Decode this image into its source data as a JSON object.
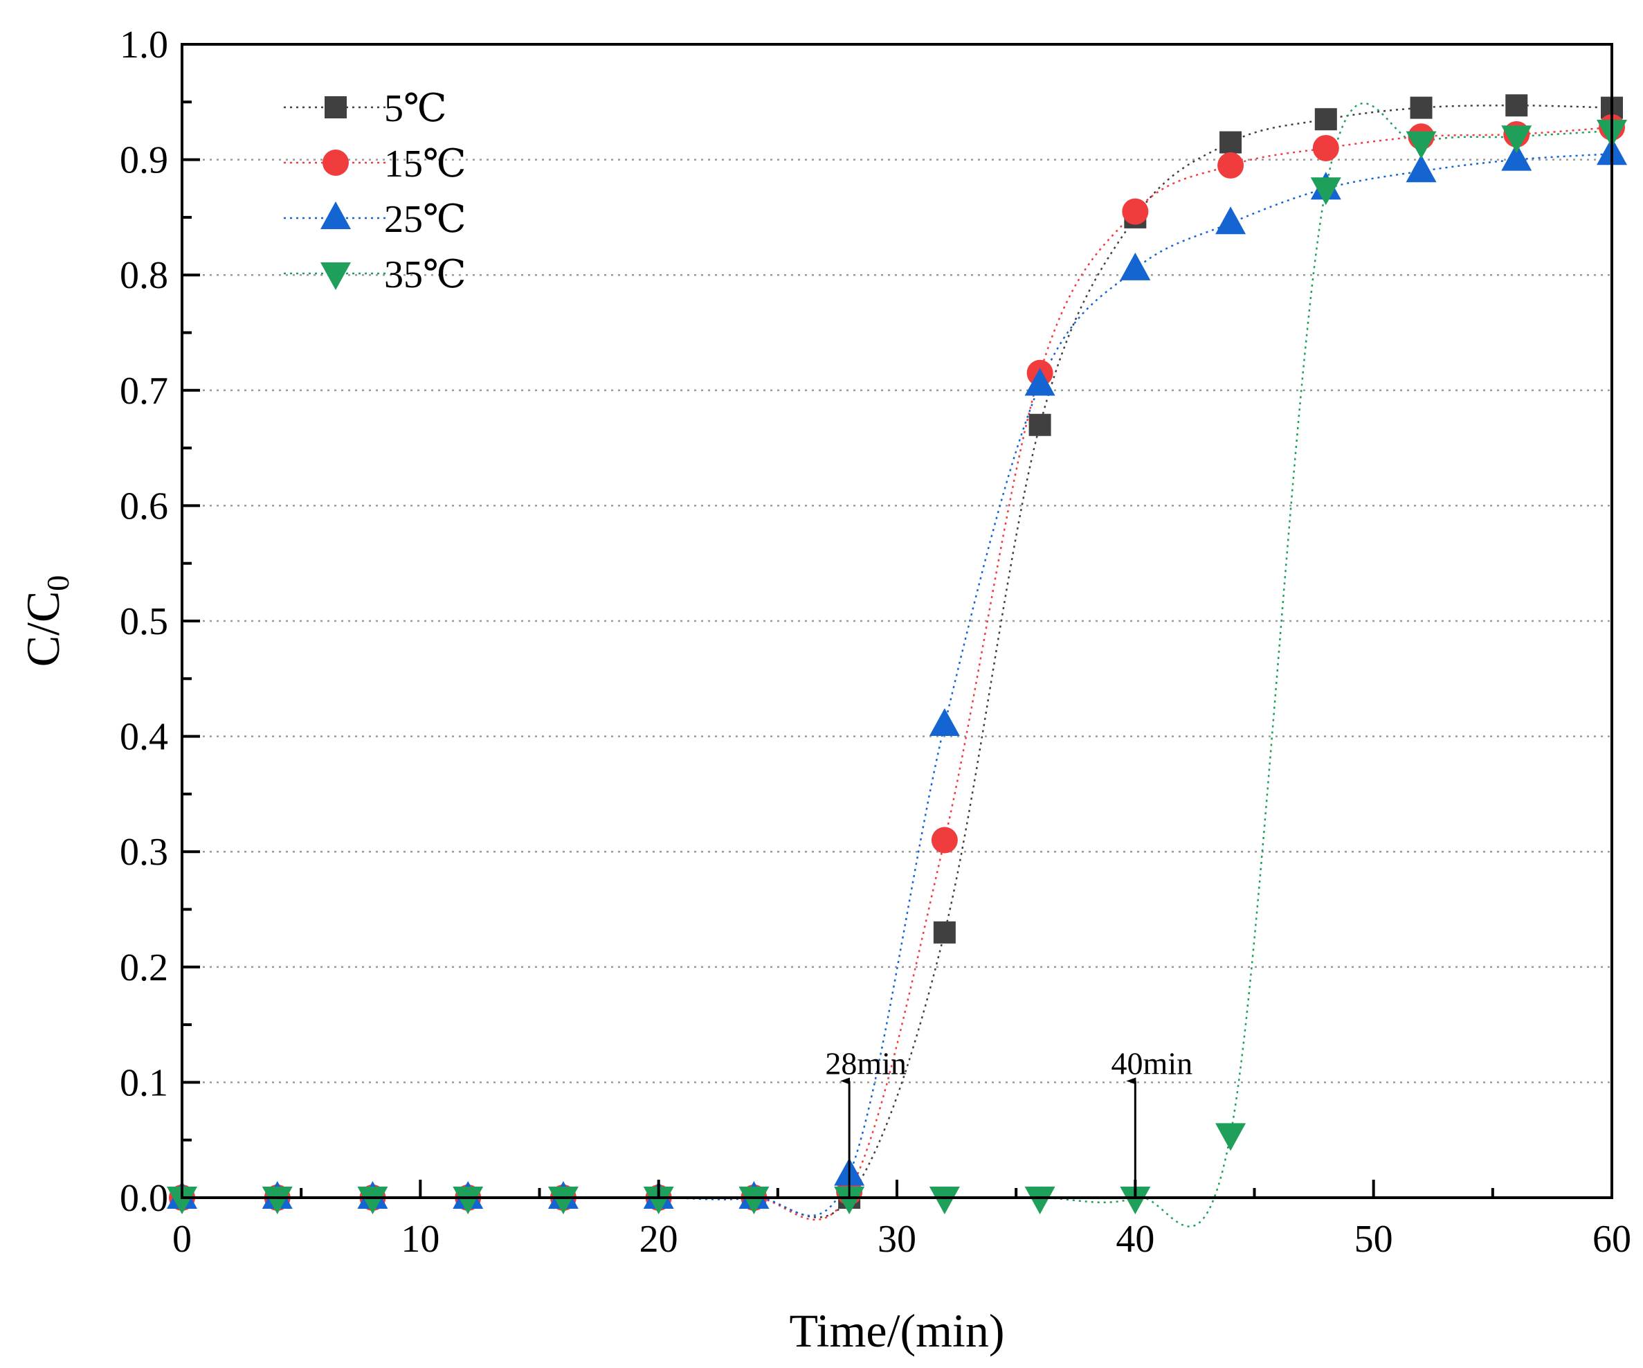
{
  "chart_data": {
    "type": "scatter",
    "title": "",
    "xlabel": "Time/(min)",
    "ylabel_main": "C/C",
    "ylabel_sub": "0",
    "xlim": [
      0,
      60
    ],
    "ylim": [
      0,
      1.0
    ],
    "x_ticks": [
      0,
      10,
      20,
      30,
      40,
      50,
      60
    ],
    "x_tick_labels": [
      "0",
      "10",
      "20",
      "30",
      "40",
      "50",
      "60"
    ],
    "y_ticks": [
      0,
      0.1,
      0.2,
      0.3,
      0.4,
      0.5,
      0.6,
      0.7,
      0.8,
      0.9,
      1.0
    ],
    "y_tick_labels": [
      "0.0",
      "0.1",
      "0.2",
      "0.3",
      "0.4",
      "0.5",
      "0.6",
      "0.7",
      "0.8",
      "0.9",
      "1.0"
    ],
    "grid": "horizontal dotted",
    "legend_position": "top-left",
    "x": [
      0,
      4,
      8,
      12,
      16,
      20,
      24,
      28,
      32,
      36,
      40,
      44,
      48,
      52,
      56,
      60
    ],
    "series": [
      {
        "name": "5℃",
        "marker": "square",
        "color": "#404040",
        "values": [
          0,
          0,
          0,
          0,
          0,
          0,
          0,
          0,
          0.23,
          0.67,
          0.85,
          0.915,
          0.935,
          0.945,
          0.947,
          0.945
        ]
      },
      {
        "name": "15℃",
        "marker": "circle",
        "color": "#f03c3c",
        "values": [
          0,
          0,
          0,
          0,
          0,
          0,
          0,
          0.005,
          0.31,
          0.715,
          0.855,
          0.895,
          0.91,
          0.92,
          0.922,
          0.928
        ]
      },
      {
        "name": "25℃",
        "marker": "triangle-up",
        "color": "#1464d2",
        "values": [
          0,
          0,
          0,
          0,
          0,
          0,
          0,
          0.02,
          0.41,
          0.705,
          0.805,
          0.845,
          0.875,
          0.89,
          0.9,
          0.905
        ]
      },
      {
        "name": "35℃",
        "marker": "triangle-down",
        "color": "#1ea05a",
        "values": [
          0,
          0,
          0,
          0,
          0,
          0,
          0,
          0,
          0,
          0,
          0,
          0.055,
          0.875,
          0.915,
          0.92,
          0.925
        ]
      }
    ],
    "annotations": [
      {
        "text": "28min",
        "x": 28,
        "arrow_from": 0,
        "arrow_to": 0.1
      },
      {
        "text": "40min",
        "x": 40,
        "arrow_from": 0,
        "arrow_to": 0.1
      }
    ]
  }
}
